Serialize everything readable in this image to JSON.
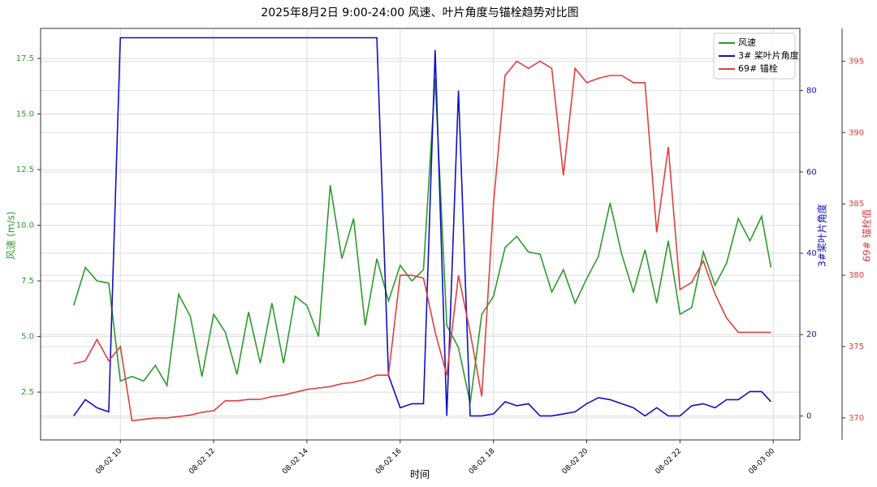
{
  "chart_data": {
    "type": "line",
    "title": "2025年8月2日 9:00-24:00 风速、叶片角度与锚栓趋势对比图",
    "x_label": "时间",
    "y_label": "风速 (m/s)",
    "y2_label": "3#桨叶片角度",
    "y3_label": "69# 锚栓值",
    "x": [
      9,
      9.25,
      9.5,
      9.75,
      10,
      10.25,
      10.5,
      10.75,
      11,
      11.25,
      11.5,
      11.75,
      12,
      12.25,
      12.5,
      12.75,
      13,
      13.25,
      13.5,
      13.75,
      14,
      14.25,
      14.5,
      14.75,
      15,
      15.25,
      15.5,
      15.75,
      16,
      16.25,
      16.5,
      16.75,
      17,
      17.25,
      17.5,
      17.75,
      18,
      18.25,
      18.5,
      18.75,
      19,
      19.25,
      19.5,
      19.75,
      20,
      20.25,
      20.5,
      20.75,
      21,
      21.25,
      21.5,
      21.75,
      22,
      22.25,
      22.5,
      22.75,
      23,
      23.25,
      23.5,
      23.75,
      23.95
    ],
    "xlim": [
      8.29,
      24.57
    ],
    "xticks": [
      {
        "value": 10,
        "label": "08-02 10"
      },
      {
        "value": 12,
        "label": "08-02 12"
      },
      {
        "value": 14,
        "label": "08-02 14"
      },
      {
        "value": 16,
        "label": "08-02 16"
      },
      {
        "value": 18,
        "label": "08-02 18"
      },
      {
        "value": 20,
        "label": "08-02 20"
      },
      {
        "value": 22,
        "label": "08-02 22"
      },
      {
        "value": 24,
        "label": "08-03 00"
      }
    ],
    "ylim": [
      0.35,
      18.85
    ],
    "yticks": [
      2.5,
      {
        "value": 5,
        "label": "5.0"
      },
      7.5,
      {
        "value": 10,
        "label": "10.0"
      },
      12.5,
      {
        "value": 15,
        "label": "15.0"
      },
      17.5
    ],
    "y2lim": [
      -5.9,
      95.3
    ],
    "y2ticks": [
      0,
      20,
      40,
      60,
      80
    ],
    "y3lim": [
      368.46,
      397.3
    ],
    "y3ticks": [
      370,
      375,
      380,
      385,
      390,
      395
    ],
    "grid": true,
    "legend": "upper right",
    "series": [
      {
        "name": "风速",
        "color": "#2e9b2e",
        "axis": "y",
        "values": [
          6.4,
          8.1,
          7.5,
          7.4,
          3.0,
          3.2,
          3.0,
          3.7,
          2.8,
          6.9,
          5.9,
          3.2,
          6.0,
          5.2,
          3.3,
          6.1,
          3.8,
          6.5,
          3.8,
          6.8,
          6.4,
          5.0,
          11.8,
          8.5,
          10.3,
          5.5,
          8.5,
          6.6,
          8.2,
          7.5,
          8.0,
          16.6,
          5.5,
          4.5,
          2.0,
          6.0,
          6.8,
          9.0,
          9.5,
          8.8,
          8.7,
          7.0,
          8.0,
          6.5,
          7.6,
          8.6,
          11.0,
          8.7,
          7.0,
          8.9,
          6.5,
          9.3,
          6.0,
          6.3,
          8.8,
          7.3,
          8.3,
          10.3,
          9.3,
          10.4,
          8.1
        ]
      },
      {
        "name": "3# 桨叶片角度",
        "color": "#1010c0",
        "axis": "y2",
        "values": [
          0,
          4,
          2,
          1,
          93,
          93,
          93,
          93,
          93,
          93,
          93,
          93,
          93,
          93,
          93,
          93,
          93,
          93,
          93,
          93,
          93,
          93,
          93,
          93,
          93,
          93,
          93,
          10,
          2,
          3,
          3,
          90,
          0,
          80,
          0,
          0,
          0.5,
          3.5,
          2.5,
          3,
          0,
          0,
          0.5,
          1,
          3,
          4.5,
          4,
          3,
          2,
          0,
          2,
          0,
          0,
          2.5,
          3,
          2,
          4,
          4,
          6,
          6,
          3.5
        ]
      },
      {
        "name": "69# 锚栓",
        "color": "#e04040",
        "axis": "y3",
        "values": [
          373.8,
          374,
          375.5,
          374,
          375,
          369.8,
          369.9,
          370,
          370,
          370.1,
          370.2,
          370.4,
          370.5,
          371.2,
          371.2,
          371.3,
          371.3,
          371.5,
          371.6,
          371.8,
          372,
          372.1,
          372.2,
          372.4,
          372.5,
          372.7,
          373,
          373,
          380,
          380,
          379.8,
          376,
          373,
          380,
          376,
          371.5,
          385,
          394,
          395,
          394.5,
          395,
          394.5,
          387,
          394.5,
          393.5,
          393.8,
          394,
          394,
          393.5,
          393.5,
          383,
          389,
          379,
          379.5,
          381,
          378.7,
          377,
          376,
          376,
          376,
          376
        ]
      }
    ]
  }
}
